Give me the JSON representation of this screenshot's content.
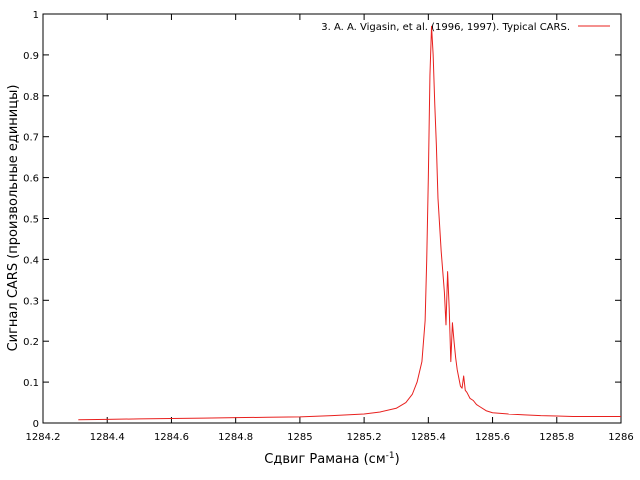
{
  "chart_data": {
    "type": "line",
    "title": "",
    "xlabel": "Сдвиг Рамана (см",
    "xlabel_sup": "-1",
    "xlabel_tail": ")",
    "ylabel": "Сигнал CARS (произвольные единицы)",
    "xlim": [
      1284.2,
      1286
    ],
    "ylim": [
      0,
      1
    ],
    "x_ticks": [
      1284.2,
      1284.4,
      1284.6,
      1284.8,
      1285,
      1285.2,
      1285.4,
      1285.6,
      1285.8,
      1286
    ],
    "x_tick_labels": [
      "1284.2",
      "1284.4",
      "1284.6",
      "1284.8",
      "1285",
      "1285.2",
      "1285.4",
      "1285.6",
      "1285.8",
      "1286"
    ],
    "y_ticks": [
      0,
      0.1,
      0.2,
      0.3,
      0.4,
      0.5,
      0.6,
      0.7,
      0.8,
      0.9,
      1
    ],
    "y_tick_labels": [
      "0",
      "0.1",
      "0.2",
      "0.3",
      "0.4",
      "0.5",
      "0.6",
      "0.7",
      "0.8",
      "0.9",
      "1"
    ],
    "grid": false,
    "legend_position": "top-right",
    "series": [
      {
        "name": "3. A. A. Vigasin, et al. (1996, 1997). Typical CARS.",
        "color": "#e8201e",
        "x": [
          1284.31,
          1284.4,
          1284.5,
          1284.6,
          1284.7,
          1284.8,
          1284.9,
          1285.0,
          1285.1,
          1285.2,
          1285.25,
          1285.3,
          1285.33,
          1285.35,
          1285.365,
          1285.38,
          1285.39,
          1285.395,
          1285.4,
          1285.405,
          1285.41,
          1285.415,
          1285.42,
          1285.425,
          1285.43,
          1285.44,
          1285.45,
          1285.455,
          1285.46,
          1285.465,
          1285.47,
          1285.475,
          1285.48,
          1285.485,
          1285.49,
          1285.495,
          1285.5,
          1285.505,
          1285.51,
          1285.515,
          1285.52,
          1285.53,
          1285.54,
          1285.55,
          1285.56,
          1285.58,
          1285.6,
          1285.65,
          1285.7,
          1285.75,
          1285.8,
          1285.85,
          1285.9,
          1286.0
        ],
        "y": [
          0.008,
          0.009,
          0.01,
          0.011,
          0.012,
          0.013,
          0.014,
          0.015,
          0.018,
          0.022,
          0.027,
          0.036,
          0.05,
          0.07,
          0.1,
          0.15,
          0.25,
          0.4,
          0.6,
          0.85,
          0.97,
          0.9,
          0.78,
          0.68,
          0.55,
          0.42,
          0.32,
          0.24,
          0.37,
          0.28,
          0.15,
          0.245,
          0.2,
          0.16,
          0.13,
          0.11,
          0.09,
          0.085,
          0.115,
          0.08,
          0.075,
          0.06,
          0.055,
          0.045,
          0.04,
          0.03,
          0.025,
          0.022,
          0.02,
          0.018,
          0.017,
          0.016,
          0.016,
          0.016
        ]
      }
    ]
  }
}
